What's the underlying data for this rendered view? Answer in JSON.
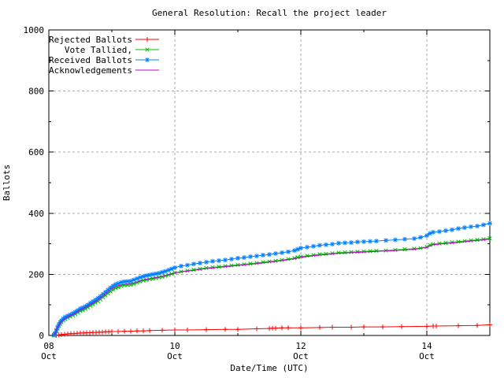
{
  "title": "General Resolution: Recall the project leader",
  "axes": {
    "xlabel": "Date/Time (UTC)",
    "ylabel": "Ballots"
  },
  "colors": {
    "background": "#ffffff",
    "border": "#000000",
    "grid": "#a8a8a8",
    "text": "#000000"
  },
  "chart_data": {
    "type": "line",
    "title": "General Resolution: Recall the project leader",
    "xlabel": "Date/Time (UTC)",
    "ylabel": "Ballots",
    "ylim": [
      0,
      1000
    ],
    "xlim_days_of_october": [
      8,
      15
    ],
    "grid": true,
    "legend_position": "top-left-inside",
    "y_major_ticks": [
      {
        "value": 0,
        "label": "0"
      },
      {
        "value": 200,
        "label": "200"
      },
      {
        "value": 400,
        "label": "400"
      },
      {
        "value": 600,
        "label": "600"
      },
      {
        "value": 800,
        "label": "800"
      },
      {
        "value": 1000,
        "label": "1000"
      }
    ],
    "y_minor_ticks": [
      100,
      300,
      500,
      700,
      900
    ],
    "x_major_ticks": [
      {
        "day": 8,
        "label_day": "08",
        "label_month": "Oct"
      },
      {
        "day": 10,
        "label_day": "10",
        "label_month": "Oct"
      },
      {
        "day": 12,
        "label_day": "12",
        "label_month": "Oct"
      },
      {
        "day": 14,
        "label_day": "14",
        "label_month": "Oct"
      }
    ],
    "x_minor_tick_days": [
      9,
      11,
      13,
      15
    ],
    "series": [
      {
        "name": "Rejected Ballots",
        "color": "#ff0000",
        "marker": "plus",
        "points": [
          [
            8.12,
            0
          ],
          [
            8.16,
            2
          ],
          [
            8.2,
            3
          ],
          [
            8.25,
            4
          ],
          [
            8.3,
            5
          ],
          [
            8.35,
            6
          ],
          [
            8.4,
            6
          ],
          [
            8.45,
            7
          ],
          [
            8.5,
            8
          ],
          [
            8.55,
            8
          ],
          [
            8.6,
            9
          ],
          [
            8.65,
            9
          ],
          [
            8.7,
            10
          ],
          [
            8.75,
            10
          ],
          [
            8.8,
            11
          ],
          [
            8.85,
            11
          ],
          [
            8.9,
            12
          ],
          [
            8.95,
            12
          ],
          [
            9.0,
            13
          ],
          [
            9.1,
            13
          ],
          [
            9.2,
            14
          ],
          [
            9.3,
            14
          ],
          [
            9.4,
            15
          ],
          [
            9.5,
            15
          ],
          [
            9.6,
            16
          ],
          [
            9.8,
            17
          ],
          [
            10.0,
            18
          ],
          [
            10.2,
            18
          ],
          [
            10.5,
            19
          ],
          [
            10.8,
            20
          ],
          [
            11.0,
            20
          ],
          [
            11.3,
            22
          ],
          [
            11.5,
            23
          ],
          [
            11.55,
            24
          ],
          [
            11.6,
            24
          ],
          [
            11.7,
            25
          ],
          [
            11.8,
            25
          ],
          [
            12.0,
            25
          ],
          [
            12.3,
            26
          ],
          [
            12.5,
            27
          ],
          [
            12.8,
            27
          ],
          [
            13.0,
            28
          ],
          [
            13.3,
            28
          ],
          [
            13.6,
            29
          ],
          [
            14.0,
            30
          ],
          [
            14.1,
            31
          ],
          [
            14.15,
            31
          ],
          [
            14.5,
            32
          ],
          [
            14.8,
            33
          ],
          [
            15.0,
            35
          ]
        ]
      },
      {
        "name": "Vote Tallied,",
        "color": "#00c000",
        "marker": "cross",
        "points": [
          [
            8.08,
            0
          ],
          [
            8.1,
            5
          ],
          [
            8.12,
            14
          ],
          [
            8.14,
            23
          ],
          [
            8.16,
            31
          ],
          [
            8.18,
            38
          ],
          [
            8.2,
            44
          ],
          [
            8.23,
            49
          ],
          [
            8.26,
            54
          ],
          [
            8.3,
            58
          ],
          [
            8.34,
            62
          ],
          [
            8.38,
            66
          ],
          [
            8.42,
            70
          ],
          [
            8.46,
            75
          ],
          [
            8.5,
            80
          ],
          [
            8.54,
            83
          ],
          [
            8.58,
            87
          ],
          [
            8.62,
            92
          ],
          [
            8.66,
            97
          ],
          [
            8.7,
            102
          ],
          [
            8.74,
            107
          ],
          [
            8.78,
            112
          ],
          [
            8.82,
            118
          ],
          [
            8.86,
            125
          ],
          [
            8.9,
            131
          ],
          [
            8.94,
            138
          ],
          [
            8.98,
            144
          ],
          [
            9.02,
            150
          ],
          [
            9.06,
            155
          ],
          [
            9.1,
            158
          ],
          [
            9.15,
            162
          ],
          [
            9.2,
            164
          ],
          [
            9.25,
            165
          ],
          [
            9.3,
            166
          ],
          [
            9.35,
            169
          ],
          [
            9.4,
            173
          ],
          [
            9.45,
            177
          ],
          [
            9.5,
            180
          ],
          [
            9.55,
            182
          ],
          [
            9.6,
            184
          ],
          [
            9.65,
            186
          ],
          [
            9.7,
            188
          ],
          [
            9.75,
            190
          ],
          [
            9.8,
            192
          ],
          [
            9.85,
            195
          ],
          [
            9.9,
            198
          ],
          [
            9.95,
            201
          ],
          [
            10.0,
            205
          ],
          [
            10.1,
            209
          ],
          [
            10.2,
            212
          ],
          [
            10.3,
            215
          ],
          [
            10.4,
            218
          ],
          [
            10.5,
            221
          ],
          [
            10.6,
            223
          ],
          [
            10.7,
            225
          ],
          [
            10.8,
            227
          ],
          [
            10.9,
            229
          ],
          [
            11.0,
            231
          ],
          [
            11.1,
            233
          ],
          [
            11.2,
            235
          ],
          [
            11.3,
            237
          ],
          [
            11.4,
            240
          ],
          [
            11.5,
            242
          ],
          [
            11.6,
            244
          ],
          [
            11.7,
            247
          ],
          [
            11.8,
            250
          ],
          [
            11.9,
            253
          ],
          [
            11.95,
            256
          ],
          [
            12.0,
            258
          ],
          [
            12.1,
            261
          ],
          [
            12.2,
            263
          ],
          [
            12.3,
            266
          ],
          [
            12.4,
            267
          ],
          [
            12.5,
            269
          ],
          [
            12.6,
            271
          ],
          [
            12.7,
            272
          ],
          [
            12.8,
            273
          ],
          [
            12.9,
            274
          ],
          [
            13.0,
            275
          ],
          [
            13.1,
            276
          ],
          [
            13.2,
            277
          ],
          [
            13.35,
            278
          ],
          [
            13.5,
            280
          ],
          [
            13.65,
            282
          ],
          [
            13.8,
            284
          ],
          [
            13.9,
            286
          ],
          [
            14.0,
            290
          ],
          [
            14.05,
            296
          ],
          [
            14.1,
            299
          ],
          [
            14.2,
            301
          ],
          [
            14.3,
            303
          ],
          [
            14.4,
            305
          ],
          [
            14.5,
            307
          ],
          [
            14.6,
            309
          ],
          [
            14.7,
            311
          ],
          [
            14.8,
            313
          ],
          [
            14.9,
            315
          ],
          [
            15.0,
            318
          ]
        ]
      },
      {
        "name": "Received Ballots",
        "color": "#0080ff",
        "marker": "star",
        "points": [
          [
            8.08,
            2
          ],
          [
            8.1,
            8
          ],
          [
            8.12,
            18
          ],
          [
            8.14,
            28
          ],
          [
            8.16,
            36
          ],
          [
            8.18,
            43
          ],
          [
            8.2,
            49
          ],
          [
            8.23,
            55
          ],
          [
            8.26,
            60
          ],
          [
            8.3,
            64
          ],
          [
            8.34,
            68
          ],
          [
            8.38,
            72
          ],
          [
            8.42,
            77
          ],
          [
            8.46,
            82
          ],
          [
            8.5,
            88
          ],
          [
            8.54,
            91
          ],
          [
            8.58,
            95
          ],
          [
            8.62,
            100
          ],
          [
            8.66,
            106
          ],
          [
            8.7,
            111
          ],
          [
            8.74,
            116
          ],
          [
            8.78,
            122
          ],
          [
            8.82,
            128
          ],
          [
            8.86,
            135
          ],
          [
            8.9,
            142
          ],
          [
            8.94,
            149
          ],
          [
            8.98,
            156
          ],
          [
            9.02,
            162
          ],
          [
            9.06,
            167
          ],
          [
            9.1,
            170
          ],
          [
            9.15,
            174
          ],
          [
            9.2,
            176
          ],
          [
            9.25,
            177
          ],
          [
            9.3,
            178
          ],
          [
            9.35,
            182
          ],
          [
            9.4,
            186
          ],
          [
            9.45,
            190
          ],
          [
            9.5,
            193
          ],
          [
            9.55,
            196
          ],
          [
            9.6,
            198
          ],
          [
            9.65,
            200
          ],
          [
            9.7,
            202
          ],
          [
            9.75,
            204
          ],
          [
            9.8,
            207
          ],
          [
            9.85,
            210
          ],
          [
            9.9,
            214
          ],
          [
            9.95,
            218
          ],
          [
            10.0,
            222
          ],
          [
            10.1,
            227
          ],
          [
            10.2,
            230
          ],
          [
            10.3,
            234
          ],
          [
            10.4,
            237
          ],
          [
            10.5,
            240
          ],
          [
            10.6,
            243
          ],
          [
            10.7,
            245
          ],
          [
            10.8,
            247
          ],
          [
            10.9,
            250
          ],
          [
            11.0,
            253
          ],
          [
            11.1,
            255
          ],
          [
            11.2,
            258
          ],
          [
            11.3,
            260
          ],
          [
            11.4,
            263
          ],
          [
            11.5,
            265
          ],
          [
            11.6,
            268
          ],
          [
            11.7,
            271
          ],
          [
            11.8,
            274
          ],
          [
            11.9,
            278
          ],
          [
            11.95,
            282
          ],
          [
            12.0,
            286
          ],
          [
            12.1,
            289
          ],
          [
            12.2,
            292
          ],
          [
            12.3,
            295
          ],
          [
            12.4,
            297
          ],
          [
            12.5,
            299
          ],
          [
            12.6,
            302
          ],
          [
            12.7,
            303
          ],
          [
            12.8,
            304
          ],
          [
            12.9,
            306
          ],
          [
            13.0,
            307
          ],
          [
            13.1,
            308
          ],
          [
            13.2,
            309
          ],
          [
            13.35,
            311
          ],
          [
            13.5,
            313
          ],
          [
            13.65,
            315
          ],
          [
            13.8,
            317
          ],
          [
            13.9,
            321
          ],
          [
            14.0,
            327
          ],
          [
            14.05,
            334
          ],
          [
            14.1,
            338
          ],
          [
            14.2,
            340
          ],
          [
            14.3,
            343
          ],
          [
            14.4,
            346
          ],
          [
            14.5,
            350
          ],
          [
            14.6,
            353
          ],
          [
            14.7,
            356
          ],
          [
            14.8,
            358
          ],
          [
            14.9,
            362
          ],
          [
            15.0,
            367
          ]
        ]
      },
      {
        "name": "Acknowledgements",
        "color": "#c000d0",
        "marker": "none",
        "points": [
          [
            8.08,
            1
          ],
          [
            8.12,
            16
          ],
          [
            8.16,
            33
          ],
          [
            8.2,
            46
          ],
          [
            8.26,
            57
          ],
          [
            8.34,
            65
          ],
          [
            8.42,
            73
          ],
          [
            8.5,
            84
          ],
          [
            8.58,
            91
          ],
          [
            8.66,
            101
          ],
          [
            8.74,
            111
          ],
          [
            8.82,
            123
          ],
          [
            8.9,
            136
          ],
          [
            8.98,
            150
          ],
          [
            9.06,
            160
          ],
          [
            9.15,
            166
          ],
          [
            9.25,
            168
          ],
          [
            9.35,
            172
          ],
          [
            9.45,
            179
          ],
          [
            9.55,
            184
          ],
          [
            9.65,
            188
          ],
          [
            9.75,
            191
          ],
          [
            9.85,
            196
          ],
          [
            9.95,
            202
          ],
          [
            10.1,
            208
          ],
          [
            10.3,
            213
          ],
          [
            10.5,
            219
          ],
          [
            10.7,
            223
          ],
          [
            10.9,
            227
          ],
          [
            11.1,
            231
          ],
          [
            11.3,
            235
          ],
          [
            11.5,
            240
          ],
          [
            11.7,
            245
          ],
          [
            11.9,
            251
          ],
          [
            12.0,
            256
          ],
          [
            12.2,
            261
          ],
          [
            12.4,
            265
          ],
          [
            12.6,
            269
          ],
          [
            12.8,
            271
          ],
          [
            13.0,
            273
          ],
          [
            13.2,
            275
          ],
          [
            13.5,
            278
          ],
          [
            13.8,
            282
          ],
          [
            14.0,
            288
          ],
          [
            14.1,
            297
          ],
          [
            14.3,
            301
          ],
          [
            14.5,
            305
          ],
          [
            14.7,
            309
          ],
          [
            14.9,
            313
          ],
          [
            15.0,
            316
          ]
        ]
      }
    ]
  }
}
